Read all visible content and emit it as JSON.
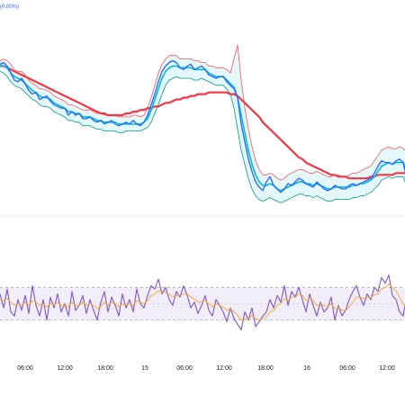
{
  "header": {
    "pct_change": "(0.00%)"
  },
  "colors": {
    "price": "#2962ff",
    "ma_long": "#f23645",
    "ma_short": "#00bcd4",
    "band_upper": "#f7525f",
    "band_lower": "#089981",
    "band_fill": "#b2ebf2",
    "rsi": "#7e57c2",
    "rsi_signal": "#f5a623",
    "rsi_fill": "#ede7f6",
    "grid": "#f0f3fa",
    "axis_text": "#131722"
  },
  "chart_data": [
    {
      "type": "line",
      "panel": "price",
      "x_labels": [
        "06:00",
        "12:00",
        "18:00",
        "15",
        "06:00",
        "12:00",
        "18:00",
        "16",
        "06:00",
        "12:00"
      ],
      "x": [
        0,
        4,
        8,
        12,
        16,
        20,
        24,
        28,
        32,
        36,
        40,
        44,
        48,
        52,
        56,
        60,
        64,
        68,
        72,
        76,
        80,
        84,
        88,
        92,
        96,
        100,
        104,
        108,
        112,
        116,
        120,
        124,
        128,
        132,
        136,
        140,
        144,
        148,
        152,
        156,
        160,
        164,
        168,
        172,
        176,
        180,
        184,
        188,
        192,
        196,
        200,
        204,
        208,
        212,
        216,
        220,
        224,
        228,
        232,
        236,
        240,
        244,
        248,
        252,
        256,
        260,
        264,
        268,
        272,
        276,
        280,
        284,
        288,
        292,
        296,
        300,
        304,
        308,
        312,
        316,
        320,
        324,
        328,
        332,
        336,
        340,
        344,
        348,
        352,
        356,
        360,
        364,
        368,
        372,
        376,
        380,
        384,
        388,
        392,
        396,
        400,
        404,
        408,
        412,
        416,
        420,
        424,
        428,
        432,
        436,
        440,
        444,
        448,
        450
      ],
      "y_range": [
        0,
        100
      ],
      "grid": false,
      "series": [
        {
          "role": "price",
          "values": [
            89,
            90,
            88,
            84,
            80,
            79,
            81,
            78,
            74,
            72,
            73,
            69,
            70,
            71,
            68,
            66,
            65,
            64,
            64,
            60,
            62,
            60,
            61,
            58,
            58,
            59,
            57,
            56,
            57,
            55,
            56,
            57,
            55,
            54,
            55,
            56,
            55,
            57,
            55,
            54,
            56,
            60,
            66,
            72,
            79,
            85,
            88,
            90,
            91,
            90,
            87,
            86,
            88,
            89,
            86,
            87,
            88,
            86,
            83,
            82,
            81,
            82,
            82,
            79,
            77,
            75,
            70,
            55,
            45,
            35,
            28,
            22,
            19,
            17,
            22,
            25,
            20,
            18,
            16,
            18,
            21,
            20,
            22,
            24,
            23,
            21,
            20,
            19,
            22,
            20,
            18,
            17,
            18,
            20,
            19,
            18,
            18,
            20,
            21,
            20,
            21,
            22,
            23,
            24,
            27,
            31,
            34,
            33,
            33,
            32,
            34,
            35,
            33,
            28
          ]
        },
        {
          "role": "ma_short",
          "values": [
            88,
            88,
            87,
            84,
            82,
            81,
            80,
            78,
            76,
            74,
            73,
            71,
            70,
            70,
            69,
            67,
            66,
            65,
            64,
            62,
            62,
            61,
            61,
            59,
            59,
            59,
            58,
            57,
            57,
            56,
            56,
            56,
            56,
            55,
            55,
            55,
            55,
            55,
            55,
            55,
            56,
            58,
            63,
            69,
            75,
            81,
            85,
            87,
            88,
            88,
            87,
            87,
            87,
            87,
            86,
            86,
            86,
            86,
            84,
            83,
            82,
            82,
            82,
            80,
            78,
            76,
            70,
            60,
            50,
            40,
            32,
            26,
            22,
            20,
            20,
            21,
            20,
            18,
            17,
            18,
            19,
            20,
            21,
            22,
            22,
            21,
            21,
            20,
            21,
            20,
            19,
            18,
            18,
            19,
            19,
            19,
            19,
            19,
            20,
            20,
            21,
            21,
            22,
            23,
            25,
            28,
            31,
            32,
            33,
            32,
            33,
            33,
            33,
            30
          ]
        },
        {
          "role": "ma_long",
          "values": [
            88,
            88,
            87,
            86,
            85,
            84,
            83,
            82,
            81,
            80,
            79,
            78,
            77,
            76,
            75,
            74,
            73,
            72,
            71,
            70,
            69,
            68,
            67,
            66,
            65,
            64,
            63,
            62,
            61,
            61,
            60,
            60,
            60,
            60,
            60,
            61,
            61,
            62,
            62,
            63,
            63,
            64,
            64,
            65,
            65,
            66,
            67,
            67,
            68,
            69,
            69,
            70,
            70,
            71,
            71,
            72,
            72,
            72,
            73,
            73,
            73,
            73,
            73,
            73,
            72,
            72,
            71,
            69,
            67,
            65,
            63,
            61,
            59,
            56,
            54,
            52,
            50,
            48,
            46,
            44,
            42,
            40,
            38,
            36,
            35,
            33,
            32,
            31,
            30,
            29,
            28,
            27,
            26,
            26,
            25,
            25,
            25,
            24,
            24,
            24,
            24,
            24,
            24,
            25,
            25,
            26,
            26,
            26,
            26,
            26,
            27,
            27,
            27,
            27
          ]
        },
        {
          "role": "band_upper",
          "values": [
            91,
            92,
            91,
            89,
            86,
            85,
            85,
            83,
            80,
            78,
            77,
            75,
            75,
            74,
            73,
            71,
            70,
            69,
            68,
            66,
            66,
            65,
            64,
            63,
            63,
            63,
            62,
            61,
            61,
            60,
            60,
            60,
            60,
            59,
            59,
            59,
            59,
            60,
            60,
            59,
            60,
            64,
            70,
            77,
            84,
            89,
            92,
            94,
            94,
            94,
            92,
            92,
            92,
            92,
            91,
            91,
            90,
            90,
            88,
            88,
            87,
            87,
            87,
            86,
            84,
            92,
            100,
            80,
            64,
            52,
            42,
            34,
            29,
            26,
            26,
            27,
            26,
            24,
            23,
            24,
            26,
            27,
            28,
            29,
            29,
            28,
            27,
            27,
            28,
            27,
            26,
            25,
            25,
            26,
            26,
            25,
            25,
            26,
            27,
            27,
            28,
            29,
            30,
            31,
            34,
            37,
            40,
            41,
            42,
            41,
            41,
            42,
            41,
            40
          ]
        },
        {
          "role": "band_lower",
          "values": [
            85,
            84,
            82,
            79,
            77,
            76,
            75,
            73,
            71,
            69,
            68,
            66,
            65,
            65,
            64,
            62,
            61,
            60,
            59,
            57,
            57,
            56,
            56,
            54,
            54,
            54,
            53,
            52,
            52,
            51,
            51,
            51,
            51,
            50,
            50,
            51,
            51,
            51,
            51,
            51,
            52,
            53,
            56,
            61,
            66,
            72,
            77,
            80,
            81,
            82,
            81,
            81,
            81,
            81,
            80,
            80,
            81,
            80,
            79,
            78,
            77,
            77,
            77,
            75,
            72,
            64,
            52,
            40,
            32,
            24,
            18,
            14,
            12,
            11,
            12,
            13,
            12,
            11,
            10,
            11,
            12,
            13,
            14,
            15,
            15,
            14,
            14,
            13,
            14,
            13,
            12,
            11,
            11,
            12,
            12,
            12,
            12,
            12,
            13,
            13,
            14,
            14,
            15,
            16,
            18,
            20,
            23,
            24,
            25,
            24,
            25,
            25,
            25,
            22
          ]
        }
      ]
    },
    {
      "type": "line",
      "panel": "rsi",
      "x": [
        0,
        4,
        8,
        12,
        16,
        20,
        24,
        28,
        32,
        36,
        40,
        44,
        48,
        52,
        56,
        60,
        64,
        68,
        72,
        76,
        80,
        84,
        88,
        92,
        96,
        100,
        104,
        108,
        112,
        116,
        120,
        124,
        128,
        132,
        136,
        140,
        144,
        148,
        152,
        156,
        160,
        164,
        168,
        172,
        176,
        180,
        184,
        188,
        192,
        196,
        200,
        204,
        208,
        212,
        216,
        220,
        224,
        228,
        232,
        236,
        240,
        244,
        248,
        252,
        256,
        260,
        264,
        268,
        272,
        276,
        280,
        284,
        288,
        292,
        296,
        300,
        304,
        308,
        312,
        316,
        320,
        324,
        328,
        332,
        336,
        340,
        344,
        348,
        352,
        356,
        360,
        364,
        368,
        372,
        376,
        380,
        384,
        388,
        392,
        396,
        400,
        404,
        408,
        412,
        416,
        420,
        424,
        428,
        432,
        436,
        440,
        444,
        448,
        450
      ],
      "y_range": [
        0,
        100
      ],
      "bands": [
        30,
        70
      ],
      "series": [
        {
          "role": "rsi",
          "values": [
            62,
            45,
            68,
            40,
            35,
            55,
            42,
            60,
            38,
            72,
            48,
            35,
            55,
            30,
            58,
            45,
            62,
            40,
            50,
            35,
            65,
            42,
            48,
            60,
            38,
            55,
            42,
            30,
            52,
            65,
            40,
            58,
            48,
            35,
            62,
            45,
            55,
            40,
            68,
            50,
            45,
            60,
            72,
            68,
            80,
            62,
            70,
            55,
            48,
            65,
            58,
            72,
            60,
            45,
            52,
            38,
            48,
            60,
            42,
            35,
            55,
            48,
            40,
            28,
            45,
            32,
            25,
            18,
            40,
            30,
            45,
            22,
            28,
            35,
            40,
            55,
            45,
            60,
            52,
            72,
            48,
            65,
            58,
            70,
            55,
            40,
            62,
            48,
            35,
            52,
            40,
            45,
            58,
            30,
            48,
            35,
            42,
            55,
            65,
            72,
            58,
            48,
            62,
            55,
            70,
            65,
            82,
            75,
            85,
            60,
            55,
            40,
            35,
            48
          ]
        },
        {
          "role": "rsi_signal",
          "values": [
            55,
            54,
            56,
            52,
            48,
            50,
            48,
            52,
            48,
            54,
            52,
            48,
            50,
            46,
            50,
            48,
            52,
            48,
            48,
            46,
            52,
            48,
            48,
            52,
            48,
            50,
            48,
            44,
            47,
            52,
            48,
            52,
            50,
            46,
            50,
            48,
            50,
            48,
            54,
            52,
            50,
            54,
            60,
            62,
            66,
            64,
            64,
            62,
            58,
            60,
            60,
            62,
            62,
            58,
            56,
            52,
            52,
            54,
            50,
            46,
            50,
            48,
            46,
            42,
            44,
            40,
            36,
            30,
            32,
            31,
            36,
            32,
            30,
            32,
            34,
            40,
            42,
            48,
            50,
            56,
            54,
            58,
            58,
            62,
            60,
            54,
            56,
            54,
            48,
            50,
            48,
            46,
            50,
            44,
            46,
            42,
            42,
            46,
            52,
            58,
            58,
            56,
            58,
            57,
            61,
            62,
            68,
            70,
            74,
            70,
            66,
            58,
            50,
            48
          ]
        }
      ]
    }
  ]
}
